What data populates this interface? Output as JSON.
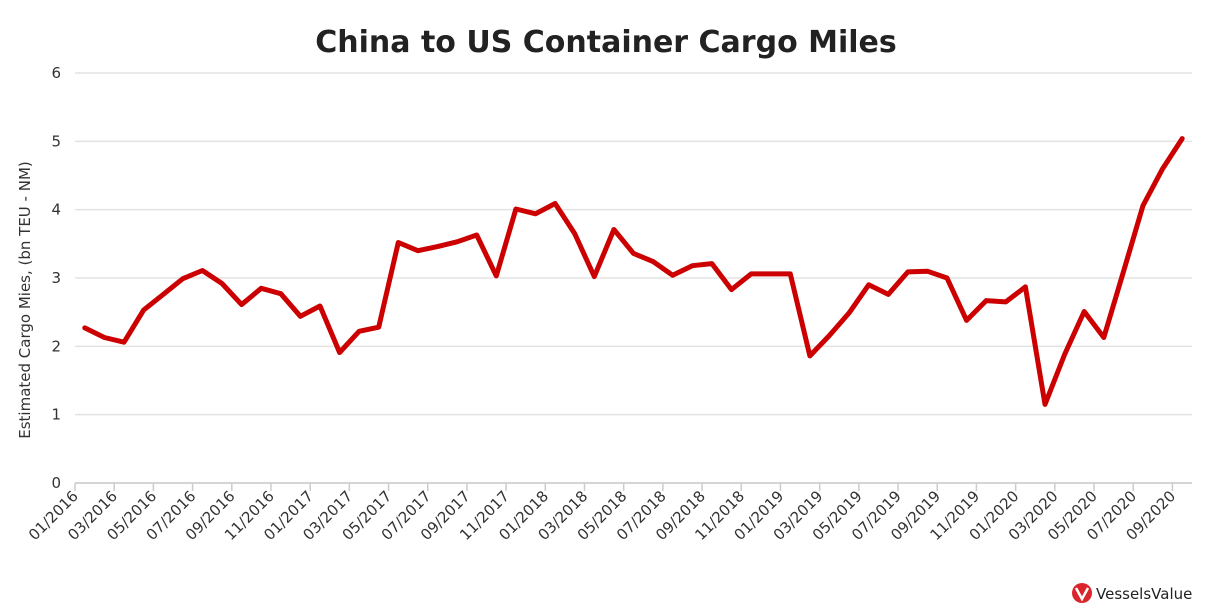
{
  "chart_data": {
    "type": "line",
    "title": "China to US Container Cargo Miles",
    "y_label": "Estimated Cargo Mies, (bn TEU - NM)",
    "watermark": "VesselsValue",
    "categories": [
      "01/2016",
      null,
      "03/2016",
      null,
      "05/2016",
      null,
      "07/2016",
      null,
      "09/2016",
      null,
      "11/2016",
      null,
      "01/2017",
      null,
      "03/2017",
      null,
      "05/2017",
      null,
      "07/2017",
      null,
      "09/2017",
      null,
      "11/2017",
      null,
      "01/2018",
      null,
      "03/2018",
      null,
      "05/2018",
      null,
      "07/2018",
      null,
      "09/2018",
      null,
      "11/2018",
      null,
      "01/2019",
      null,
      "03/2019",
      null,
      "05/2019",
      null,
      "07/2019",
      null,
      "09/2019",
      null,
      "11/2019",
      null,
      "01/2020",
      null,
      "03/2020",
      null,
      "05/2020",
      null,
      "07/2020",
      null,
      "09/2020"
    ],
    "series": [
      {
        "name": "Cargo Miles",
        "color": "#cc0000",
        "values": [
          2.27,
          2.13,
          2.06,
          2.53,
          2.76,
          2.99,
          3.11,
          2.92,
          2.61,
          2.85,
          2.77,
          2.44,
          2.59,
          1.91,
          2.22,
          2.28,
          3.52,
          3.4,
          3.46,
          3.53,
          3.63,
          3.03,
          4.01,
          3.94,
          4.09,
          3.65,
          3.02,
          3.71,
          3.36,
          3.24,
          3.04,
          3.18,
          3.21,
          2.83,
          3.06,
          3.06,
          3.06,
          1.86,
          2.16,
          2.49,
          2.9,
          2.76,
          3.09,
          3.1,
          3.0,
          2.38,
          2.67,
          2.65,
          2.87,
          1.15,
          1.88,
          2.51,
          2.13,
          3.09,
          4.06,
          4.6,
          5.04
        ]
      }
    ],
    "ylim": [
      0,
      6
    ],
    "yticks": [
      0,
      1,
      2,
      3,
      4,
      5,
      6
    ],
    "grid": true
  }
}
